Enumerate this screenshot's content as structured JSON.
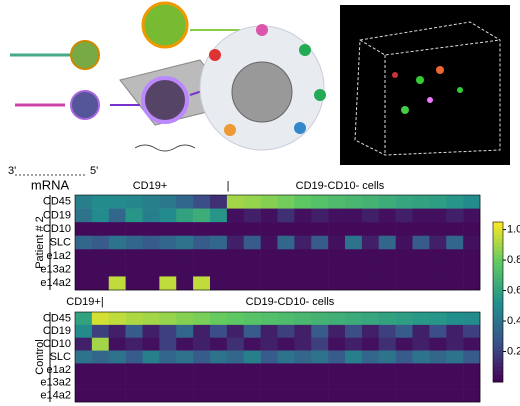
{
  "illustration": {
    "primes": [
      "3'",
      "5'"
    ],
    "label": "mRNA"
  },
  "chart_data": [
    {
      "type": "heatmap",
      "ylabel": "Patient # 2",
      "annotations": [
        "CD19+",
        "|",
        "CD19-CD10- cells"
      ],
      "rows": [
        "CD45",
        "CD19",
        "CD10",
        "SLC",
        "e1a2",
        "e13a2",
        "e14a2"
      ],
      "values": [
        [
          0.45,
          0.5,
          0.5,
          0.48,
          0.45,
          0.42,
          0.35,
          0.25,
          0.15,
          0.9,
          0.88,
          0.85,
          0.82,
          0.78,
          0.75,
          0.72,
          0.7,
          0.68,
          0.65,
          0.62,
          0.6,
          0.58,
          0.55,
          0.5
        ],
        [
          0.4,
          0.5,
          0.35,
          0.55,
          0.45,
          0.5,
          0.6,
          0.65,
          0.55,
          0.05,
          0.1,
          0.05,
          0.15,
          0.05,
          0.1,
          0.05,
          0.05,
          0.1,
          0.05,
          0.1,
          0.05,
          0.05,
          0.1,
          0.05
        ],
        [
          0.03,
          0.03,
          0.03,
          0.03,
          0.03,
          0.03,
          0.03,
          0.03,
          0.03,
          0.03,
          0.03,
          0.03,
          0.03,
          0.03,
          0.03,
          0.03,
          0.03,
          0.03,
          0.03,
          0.03,
          0.03,
          0.03,
          0.03,
          0.03
        ],
        [
          0.35,
          0.3,
          0.4,
          0.35,
          0.3,
          0.35,
          0.4,
          0.3,
          0.35,
          0.1,
          0.3,
          0.05,
          0.35,
          0.1,
          0.3,
          0.05,
          0.4,
          0.1,
          0.35,
          0.05,
          0.3,
          0.1,
          0.35,
          0.05
        ],
        [
          0.03,
          0.03,
          0.03,
          0.03,
          0.03,
          0.03,
          0.03,
          0.03,
          0.03,
          0.03,
          0.03,
          0.03,
          0.03,
          0.03,
          0.03,
          0.03,
          0.03,
          0.03,
          0.03,
          0.03,
          0.03,
          0.03,
          0.03,
          0.03
        ],
        [
          0.03,
          0.03,
          0.03,
          0.03,
          0.03,
          0.03,
          0.03,
          0.03,
          0.03,
          0.03,
          0.03,
          0.03,
          0.03,
          0.03,
          0.03,
          0.03,
          0.03,
          0.03,
          0.03,
          0.03,
          0.03,
          0.03,
          0.03,
          0.03
        ],
        [
          0.03,
          0.03,
          0.95,
          0.03,
          0.03,
          0.95,
          0.03,
          0.95,
          0.03,
          0.03,
          0.03,
          0.03,
          0.03,
          0.03,
          0.03,
          0.03,
          0.03,
          0.03,
          0.03,
          0.03,
          0.03,
          0.03,
          0.03,
          0.03
        ]
      ],
      "zlim": [
        0,
        1.05
      ],
      "zticks": [
        0.2,
        0.4,
        0.6,
        0.8,
        {
          "value": 1.0,
          "label": "1.0"
        }
      ]
    },
    {
      "type": "heatmap",
      "ylabel": "Control",
      "annotations": [
        "CD19+|",
        "CD19-CD10- cells"
      ],
      "rows": [
        "CD45",
        "CD19",
        "CD10",
        "SLC",
        "e1a2",
        "e13a2",
        "e14a2"
      ],
      "values": [
        [
          0.6,
          0.98,
          0.95,
          0.92,
          0.9,
          0.88,
          0.85,
          0.83,
          0.8,
          0.78,
          0.76,
          0.74,
          0.72,
          0.7,
          0.68,
          0.66,
          0.64,
          0.62,
          0.6,
          0.58,
          0.56,
          0.55,
          0.52,
          0.5
        ],
        [
          0.5,
          0.2,
          0.1,
          0.3,
          0.1,
          0.2,
          0.35,
          0.1,
          0.25,
          0.1,
          0.3,
          0.1,
          0.2,
          0.1,
          0.3,
          0.1,
          0.25,
          0.1,
          0.2,
          0.3,
          0.1,
          0.25,
          0.1,
          0.2
        ],
        [
          0.1,
          0.9,
          0.05,
          0.1,
          0.05,
          0.2,
          0.05,
          0.1,
          0.05,
          0.15,
          0.05,
          0.1,
          0.05,
          0.1,
          0.2,
          0.05,
          0.1,
          0.05,
          0.15,
          0.05,
          0.1,
          0.05,
          0.1,
          0.05
        ],
        [
          0.4,
          0.35,
          0.4,
          0.3,
          0.45,
          0.35,
          0.4,
          0.3,
          0.4,
          0.35,
          0.45,
          0.3,
          0.4,
          0.35,
          0.4,
          0.3,
          0.45,
          0.35,
          0.4,
          0.3,
          0.4,
          0.35,
          0.4,
          0.3
        ],
        [
          0.03,
          0.03,
          0.03,
          0.03,
          0.03,
          0.03,
          0.03,
          0.03,
          0.03,
          0.03,
          0.03,
          0.03,
          0.03,
          0.03,
          0.03,
          0.03,
          0.03,
          0.03,
          0.03,
          0.03,
          0.03,
          0.03,
          0.03,
          0.03
        ],
        [
          0.03,
          0.03,
          0.03,
          0.03,
          0.03,
          0.03,
          0.03,
          0.03,
          0.03,
          0.03,
          0.03,
          0.03,
          0.03,
          0.03,
          0.03,
          0.03,
          0.03,
          0.03,
          0.03,
          0.03,
          0.03,
          0.03,
          0.03,
          0.03
        ],
        [
          0.03,
          0.03,
          0.03,
          0.03,
          0.03,
          0.03,
          0.03,
          0.03,
          0.03,
          0.03,
          0.03,
          0.03,
          0.03,
          0.03,
          0.03,
          0.03,
          0.03,
          0.03,
          0.03,
          0.03,
          0.03,
          0.03,
          0.03,
          0.03
        ]
      ]
    }
  ]
}
